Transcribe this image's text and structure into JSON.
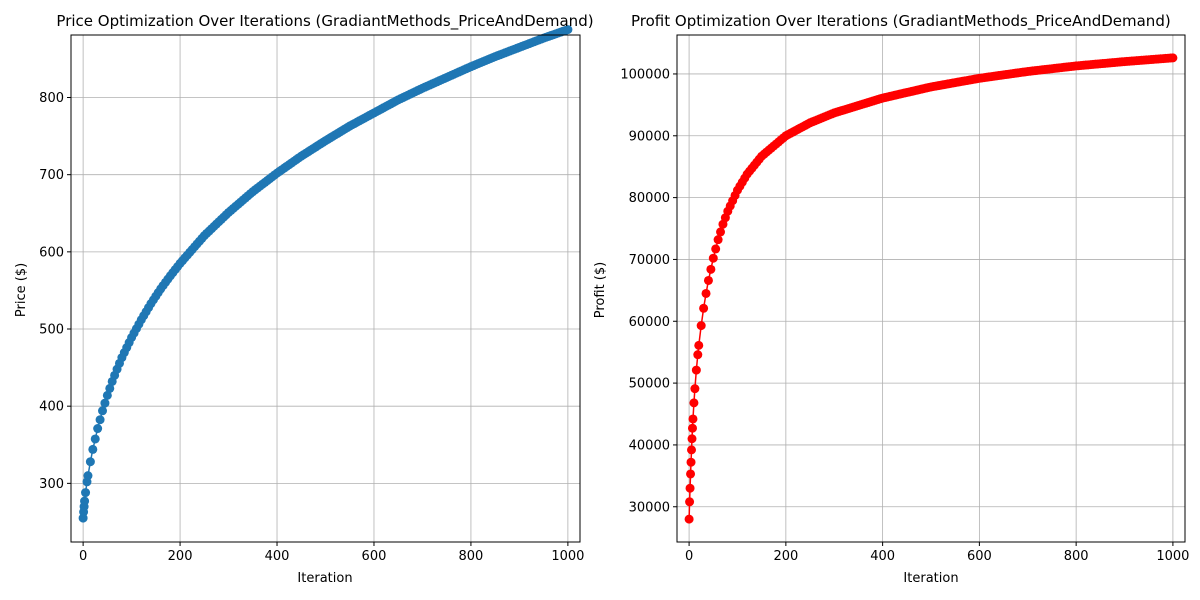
{
  "chart_data": [
    {
      "type": "line",
      "title": "Price Optimization Over Iterations (GradiantMethods_PriceAndDemand)",
      "xlabel": "Iteration",
      "ylabel": "Price ($)",
      "xlim": [
        -25,
        1025
      ],
      "ylim": [
        224,
        881
      ],
      "xticks": [
        0,
        200,
        400,
        600,
        800,
        1000
      ],
      "yticks": [
        300,
        400,
        500,
        600,
        700,
        800
      ],
      "grid": true,
      "marker": "circle",
      "series": [
        {
          "color": "#1f77b4",
          "x": [
            0,
            1,
            2,
            3,
            5,
            8,
            10,
            15,
            20,
            30,
            40,
            50,
            60,
            70,
            80,
            90,
            100,
            120,
            140,
            160,
            180,
            200,
            250,
            300,
            350,
            400,
            450,
            500,
            550,
            600,
            650,
            700,
            750,
            800,
            850,
            900,
            950,
            1000
          ],
          "y": [
            255,
            263,
            270,
            277,
            288,
            302,
            310,
            328,
            344,
            371,
            394,
            414,
            432,
            448,
            463,
            476,
            489,
            512,
            533,
            552,
            569,
            585,
            621,
            651,
            678,
            702,
            724,
            744,
            763,
            780,
            797,
            812,
            826,
            840,
            853,
            865,
            877,
            888
          ]
        }
      ]
    },
    {
      "type": "line",
      "title": "Profit Optimization Over Iterations (GradiantMethods_PriceAndDemand)",
      "xlabel": "Iteration",
      "ylabel": "Profit ($)",
      "xlim": [
        -25,
        1025
      ],
      "ylim": [
        24300,
        106300
      ],
      "xticks": [
        0,
        200,
        400,
        600,
        800,
        1000
      ],
      "yticks": [
        30000,
        40000,
        50000,
        60000,
        70000,
        80000,
        90000,
        100000
      ],
      "grid": true,
      "marker": "circle",
      "series": [
        {
          "color": "#ff0000",
          "x": [
            0,
            1,
            2,
            3,
            4,
            5,
            6,
            7,
            8,
            10,
            12,
            15,
            18,
            20,
            25,
            30,
            35,
            40,
            50,
            60,
            70,
            80,
            100,
            120,
            150,
            200,
            250,
            300,
            400,
            500,
            600,
            700,
            800,
            900,
            1000
          ],
          "y": [
            28000,
            30800,
            33000,
            35300,
            37200,
            39200,
            41000,
            42700,
            44200,
            46800,
            49100,
            52100,
            54600,
            56100,
            59300,
            62100,
            64500,
            66600,
            70200,
            73200,
            75700,
            77800,
            81200,
            83800,
            86700,
            90000,
            92100,
            93700,
            96100,
            97900,
            99300,
            100400,
            101300,
            102000,
            102600
          ]
        }
      ]
    }
  ]
}
